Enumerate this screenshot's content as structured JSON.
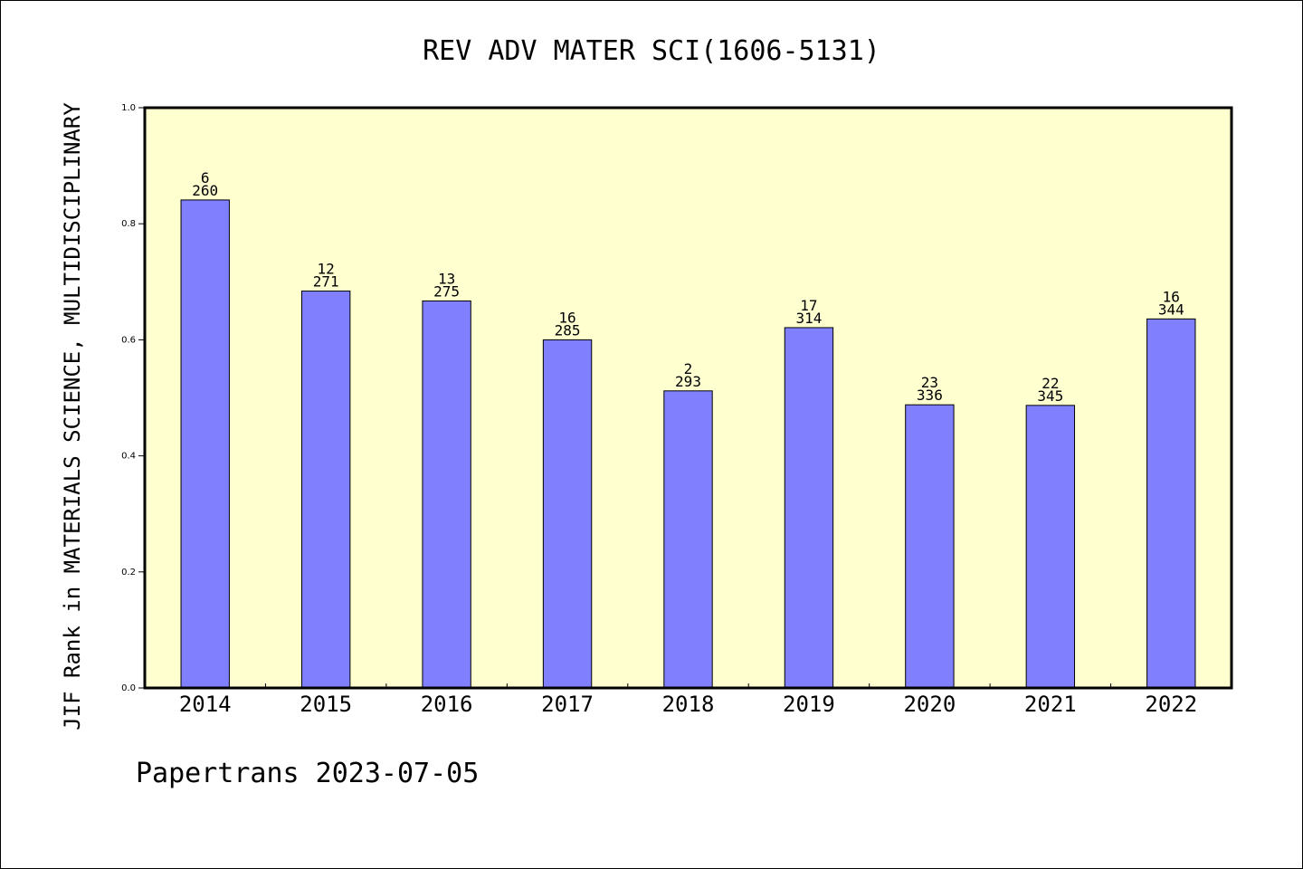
{
  "chart_data": {
    "type": "bar",
    "title": "REV ADV MATER SCI(1606-5131)",
    "ylabel": "JIF Rank in MATERIALS SCIENCE, MULTIDISCIPLINARY",
    "xlabel": "",
    "footer": "Papertrans 2023-07-05",
    "ylim": [
      0,
      1.0
    ],
    "yticks": [
      "0.0",
      "0.2",
      "0.4",
      "0.6",
      "0.8",
      "1.0"
    ],
    "categories": [
      "2014",
      "2015",
      "2016",
      "2017",
      "2018",
      "2019",
      "2020",
      "2021",
      "2022"
    ],
    "values": [
      0.841,
      0.684,
      0.667,
      0.6,
      0.512,
      0.621,
      0.488,
      0.487,
      0.636
    ],
    "ranks": [
      "6",
      "12",
      "13",
      "16",
      "2",
      "17",
      "23",
      "22",
      "16"
    ],
    "totals": [
      "260",
      "271",
      "275",
      "285",
      "293",
      "314",
      "336",
      "345",
      "344"
    ],
    "grid": false,
    "colors": {
      "plot_background": "#FFFFD0",
      "bar_fill": "#8080FF",
      "bar_stroke": "#000000",
      "axis": "#000000"
    }
  }
}
